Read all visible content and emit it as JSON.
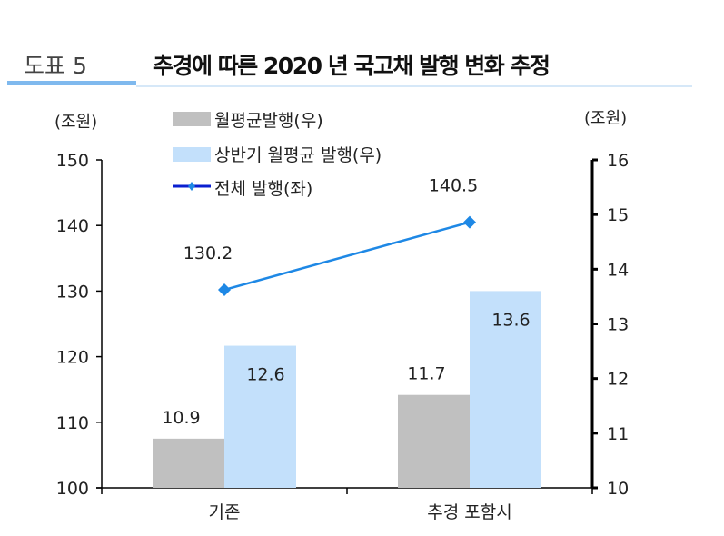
{
  "header": {
    "figure_label": "도표 5",
    "title": "추경에 따른 2020 년 국고채 발행 변화 추정"
  },
  "colors": {
    "gray_bar": "#c0c0c0",
    "lightblue_bar": "#c3e0fb",
    "line": "#1e88e5",
    "marker": "#1e88e5",
    "header_accent": "#7fb9ee",
    "header_rule": "#d6e8f8"
  },
  "chart_data": {
    "type": "bar+line",
    "title": "추경에 따른 2020 년 국고채 발행 변화 추정",
    "categories": [
      "기존",
      "추경 포함시"
    ],
    "left_axis": {
      "unit_label": "(조원)",
      "range": [
        100,
        150
      ],
      "ticks": [
        "100",
        "110",
        "120",
        "130",
        "140",
        "150"
      ]
    },
    "right_axis": {
      "unit_label": "(조원)",
      "range": [
        10,
        16
      ],
      "ticks": [
        "10",
        "11",
        "12",
        "13",
        "14",
        "15",
        "16"
      ]
    },
    "series": [
      {
        "name": "월평균발행(우)",
        "type": "bar",
        "axis": "right",
        "values": [
          10.9,
          11.7
        ],
        "labels": [
          "10.9",
          "11.7"
        ]
      },
      {
        "name": "상반기 월평균 발행(우)",
        "type": "bar",
        "axis": "right",
        "values": [
          12.6,
          13.6
        ],
        "labels": [
          "12.6",
          "13.6"
        ]
      },
      {
        "name": "전체 발행(좌)",
        "type": "line",
        "axis": "left",
        "values": [
          130.2,
          140.5
        ],
        "labels": [
          "130.2",
          "140.5"
        ]
      }
    ],
    "legend_position": "top-left",
    "grid": false
  }
}
